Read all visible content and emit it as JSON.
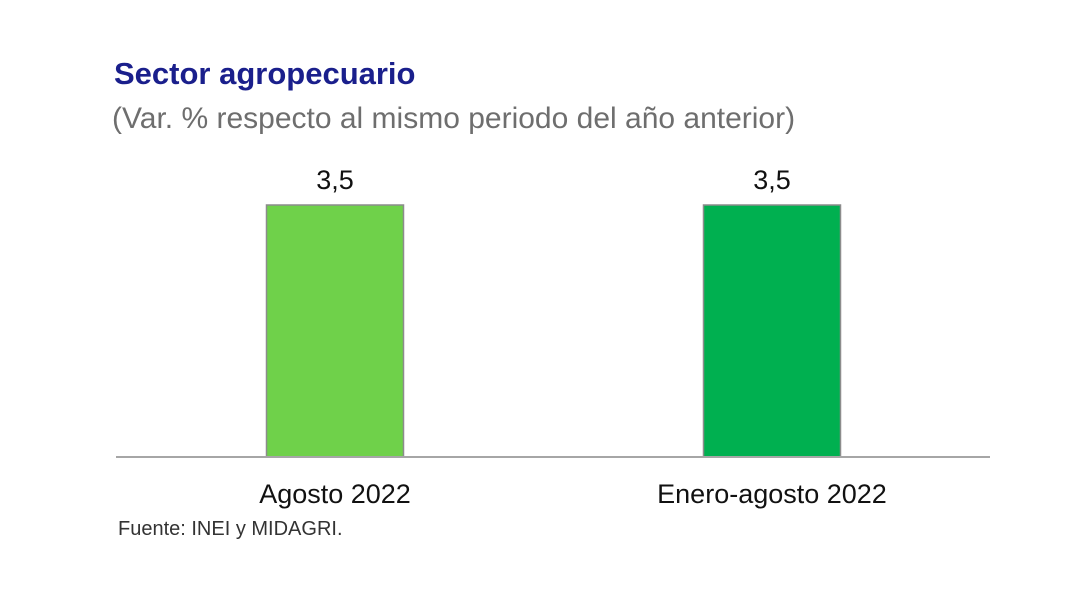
{
  "chart_data": {
    "type": "bar",
    "title": "Sector agropecuario",
    "subtitle": "(Var. % respecto al mismo periodo del año anterior)",
    "categories": [
      "Agosto 2022",
      "Enero-agosto 2022"
    ],
    "values": [
      3.5,
      3.5
    ],
    "value_labels": [
      "3,5",
      "3,5"
    ],
    "colors": [
      "#6fd14a",
      "#00b050"
    ],
    "ylim": [
      0,
      3.5
    ],
    "grid": false,
    "legend": "none",
    "source": "Fuente: INEI y MIDAGRI."
  }
}
